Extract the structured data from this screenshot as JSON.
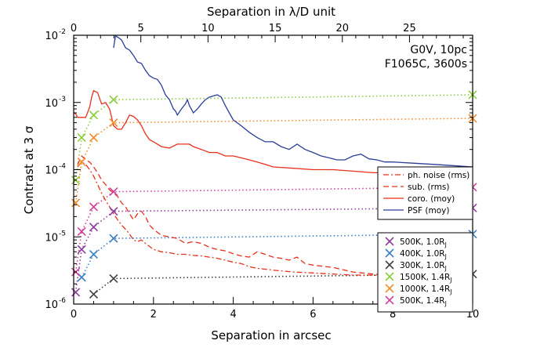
{
  "chart_data": {
    "type": "line",
    "y_scale": "log",
    "xlim": [
      0,
      10
    ],
    "ylim": [
      1e-06,
      0.01
    ],
    "top_xlim": [
      0,
      29.7
    ],
    "xlabel": "Separation in arcsec",
    "top_xlabel": "Separation in λ/D unit",
    "ylabel": "Contrast at 3 σ",
    "x_ticks": [
      "0",
      "2",
      "4",
      "6",
      "8",
      "10"
    ],
    "x_tick_values": [
      0,
      2,
      4,
      6,
      8,
      10
    ],
    "top_x_ticks": [
      "0",
      "5",
      "10",
      "15",
      "20",
      "25"
    ],
    "top_x_tick_values": [
      0,
      5,
      10,
      15,
      20,
      25
    ],
    "y_tick_labels": [
      {
        "base": "10",
        "exp": "-6",
        "value": 1e-06
      },
      {
        "base": "10",
        "exp": "-5",
        "value": 1e-05
      },
      {
        "base": "10",
        "exp": "-4",
        "value": 0.0001
      },
      {
        "base": "10",
        "exp": "-3",
        "value": 0.001
      },
      {
        "base": "10",
        "exp": "-2",
        "value": 0.01
      }
    ],
    "annotation": [
      "G0V, 10pc",
      "F1065C, 3600s"
    ],
    "series": [
      {
        "name": "PSF (moy)",
        "color": "#2b3e9a",
        "dash": "solid",
        "x": [
          1.0,
          1.05,
          1.15,
          1.2,
          1.3,
          1.4,
          1.5,
          1.6,
          1.7,
          1.8,
          1.9,
          2.0,
          2.1,
          2.2,
          2.3,
          2.4,
          2.5,
          2.55,
          2.6,
          2.7,
          2.8,
          2.85,
          2.9,
          3.0,
          3.1,
          3.2,
          3.3,
          3.4,
          3.5,
          3.6,
          3.7,
          3.8,
          3.9,
          4.0,
          4.2,
          4.4,
          4.6,
          4.8,
          5.0,
          5.2,
          5.4,
          5.6,
          5.8,
          6.0,
          6.2,
          6.4,
          6.6,
          6.8,
          7.0,
          7.2,
          7.4,
          7.6,
          7.8,
          8.0,
          8.5,
          9.0,
          9.5,
          10.0
        ],
        "y": [
          0.0065,
          0.0098,
          0.009,
          0.0085,
          0.0065,
          0.006,
          0.005,
          0.004,
          0.0038,
          0.003,
          0.0025,
          0.0023,
          0.0022,
          0.0018,
          0.0013,
          0.0011,
          0.0008,
          0.00075,
          0.00065,
          0.0008,
          0.00095,
          0.0011,
          0.0009,
          0.0007,
          0.0008,
          0.00095,
          0.0011,
          0.0012,
          0.00125,
          0.0013,
          0.0012,
          0.0009,
          0.0007,
          0.00055,
          0.00045,
          0.00036,
          0.0003,
          0.00026,
          0.00026,
          0.00022,
          0.0002,
          0.00024,
          0.0002,
          0.00018,
          0.00016,
          0.00015,
          0.00014,
          0.00014,
          0.00016,
          0.00017,
          0.000145,
          0.00014,
          0.00013,
          0.00013,
          0.000125,
          0.00012,
          0.000115,
          0.00011
        ]
      },
      {
        "name": "coro. (moy)",
        "color": "#e8301c",
        "dash": "solid",
        "x": [
          0.0,
          0.05,
          0.1,
          0.15,
          0.2,
          0.3,
          0.4,
          0.45,
          0.5,
          0.6,
          0.7,
          0.8,
          0.9,
          1.0,
          1.1,
          1.2,
          1.3,
          1.4,
          1.5,
          1.6,
          1.7,
          1.8,
          1.9,
          2.0,
          2.2,
          2.4,
          2.6,
          2.8,
          2.9,
          3.0,
          3.2,
          3.4,
          3.6,
          3.8,
          4.0,
          4.2,
          4.4,
          4.6,
          4.8,
          5.0,
          5.5,
          6.0,
          6.5,
          7.0,
          7.5,
          8.0,
          9.0,
          10.0
        ],
        "y": [
          0.0007,
          0.00068,
          0.0006,
          0.0006,
          0.0006,
          0.0006,
          0.00085,
          0.0012,
          0.0015,
          0.0014,
          0.00095,
          0.001,
          0.0008,
          0.00045,
          0.0004,
          0.0004,
          0.0005,
          0.00065,
          0.00062,
          0.00055,
          0.00045,
          0.00034,
          0.00028,
          0.00026,
          0.00022,
          0.00021,
          0.00024,
          0.00024,
          0.00024,
          0.00022,
          0.0002,
          0.00018,
          0.00018,
          0.00016,
          0.00016,
          0.00015,
          0.00014,
          0.00013,
          0.00012,
          0.00011,
          0.000105,
          0.0001,
          0.0001,
          9.5e-05,
          9e-05,
          9e-05,
          8.5e-05,
          8e-05
        ]
      },
      {
        "name": "sub. (rms)",
        "color": "#e8301c",
        "dash": "dashed",
        "x": [
          0.1,
          0.2,
          0.3,
          0.4,
          0.5,
          0.6,
          0.7,
          0.8,
          0.9,
          1.0,
          1.1,
          1.2,
          1.3,
          1.4,
          1.5,
          1.6,
          1.7,
          1.8,
          1.9,
          2.0,
          2.2,
          2.4,
          2.6,
          2.8,
          3.0,
          3.2,
          3.4,
          3.6,
          3.8,
          4.0,
          4.2,
          4.4,
          4.6,
          4.8,
          5.0,
          5.2,
          5.4,
          5.6,
          5.8,
          6.0,
          6.5,
          7.0,
          7.5,
          8.0,
          9.0,
          10.0
        ],
        "y": [
          0.00012,
          0.00016,
          0.00014,
          0.00013,
          0.00011,
          9e-05,
          7e-05,
          6e-05,
          5e-05,
          4.5e-05,
          4e-05,
          3.2e-05,
          2.8e-05,
          2.2e-05,
          1.8e-05,
          2.2e-05,
          2.4e-05,
          2e-05,
          1.5e-05,
          1.3e-05,
          1.05e-05,
          1e-05,
          9.5e-06,
          8e-06,
          8.5e-06,
          8e-06,
          7e-06,
          6.5e-06,
          6.2e-06,
          5.6e-06,
          5.2e-06,
          5e-06,
          6e-06,
          5.5e-06,
          5e-06,
          4.8e-06,
          4.5e-06,
          5e-06,
          4e-06,
          3.8e-06,
          3.5e-06,
          3e-06,
          2.8e-06,
          2.7e-06,
          2.6e-06,
          2.5e-06
        ]
      },
      {
        "name": "ph. noise (rms)",
        "color": "#e8301c",
        "dash": "dashdot",
        "x": [
          0.1,
          0.2,
          0.3,
          0.4,
          0.5,
          0.6,
          0.7,
          0.8,
          0.9,
          1.0,
          1.1,
          1.2,
          1.3,
          1.4,
          1.5,
          1.6,
          1.7,
          1.8,
          2.0,
          2.2,
          2.4,
          2.6,
          2.8,
          3.0,
          3.2,
          3.4,
          3.6,
          3.8,
          4.0,
          4.2,
          4.4,
          4.6,
          4.8,
          5.0,
          5.5,
          6.0,
          6.5,
          7.0,
          7.5,
          8.0,
          9.0,
          10.0
        ],
        "y": [
          0.00011,
          0.00013,
          0.00012,
          0.0001,
          8e-05,
          6e-05,
          4.5e-05,
          3.5e-05,
          2.8e-05,
          2.2e-05,
          1.8e-05,
          1.5e-05,
          1.3e-05,
          1.1e-05,
          9e-06,
          8.5e-06,
          9e-06,
          8e-06,
          6.5e-06,
          6e-06,
          5.8e-06,
          5.5e-06,
          5.5e-06,
          5.3e-06,
          5.2e-06,
          5e-06,
          4.8e-06,
          4.5e-06,
          4.2e-06,
          4e-06,
          3.6e-06,
          3.4e-06,
          3.3e-06,
          3.2e-06,
          3e-06,
          2.9e-06,
          2.8e-06,
          2.7e-06,
          2.7e-06,
          2.6e-06,
          2.55e-06,
          2.5e-06
        ]
      }
    ],
    "planet_series": [
      {
        "name": "500K, 1.0R",
        "sub": "J",
        "color": "#8f3d9c",
        "x": [
          0.05,
          0.2,
          0.5,
          1.0,
          10.0
        ],
        "y": [
          1.5e-06,
          6.5e-06,
          1.4e-05,
          2.4e-05,
          2.7e-05
        ]
      },
      {
        "name": "400K, 1.0R",
        "sub": "J",
        "color": "#3b7fc4",
        "x": [
          0.2,
          0.5,
          1.0,
          10.0
        ],
        "y": [
          2.5e-06,
          5.5e-06,
          9.5e-06,
          1.1e-05
        ]
      },
      {
        "name": "300K, 1.0R",
        "sub": "J",
        "color": "#404040",
        "x": [
          0.5,
          1.0,
          10.0
        ],
        "y": [
          1.4e-06,
          2.4e-06,
          2.8e-06
        ]
      },
      {
        "name": "1500K, 1.4R",
        "sub": "J",
        "color": "#8ccc3a",
        "x": [
          0.05,
          0.2,
          0.5,
          1.0,
          10.0
        ],
        "y": [
          7e-05,
          0.0003,
          0.00065,
          0.0011,
          0.0013
        ]
      },
      {
        "name": "1000K, 1.4R",
        "sub": "J",
        "color": "#f08c2a",
        "x": [
          0.05,
          0.2,
          0.5,
          1.0,
          10.0
        ],
        "y": [
          3.2e-05,
          0.00013,
          0.0003,
          0.0005,
          0.00058
        ]
      },
      {
        "name": "500K, 1.4R",
        "sub": "J",
        "color": "#d0409a",
        "x": [
          0.05,
          0.2,
          0.5,
          1.0,
          10.0
        ],
        "y": [
          3e-06,
          1.2e-05,
          2.8e-05,
          4.7e-05,
          5.5e-05
        ]
      }
    ],
    "legend_curves_order": [
      "ph. noise (rms)",
      "sub. (rms)",
      "coro. (moy)",
      "PSF (moy)"
    ],
    "legend_planets_order": [
      "500K, 1.0R",
      "400K, 1.0R",
      "300K, 1.0R",
      "1500K, 1.4R",
      "1000K, 1.4R",
      "500K, 1.4R"
    ]
  }
}
